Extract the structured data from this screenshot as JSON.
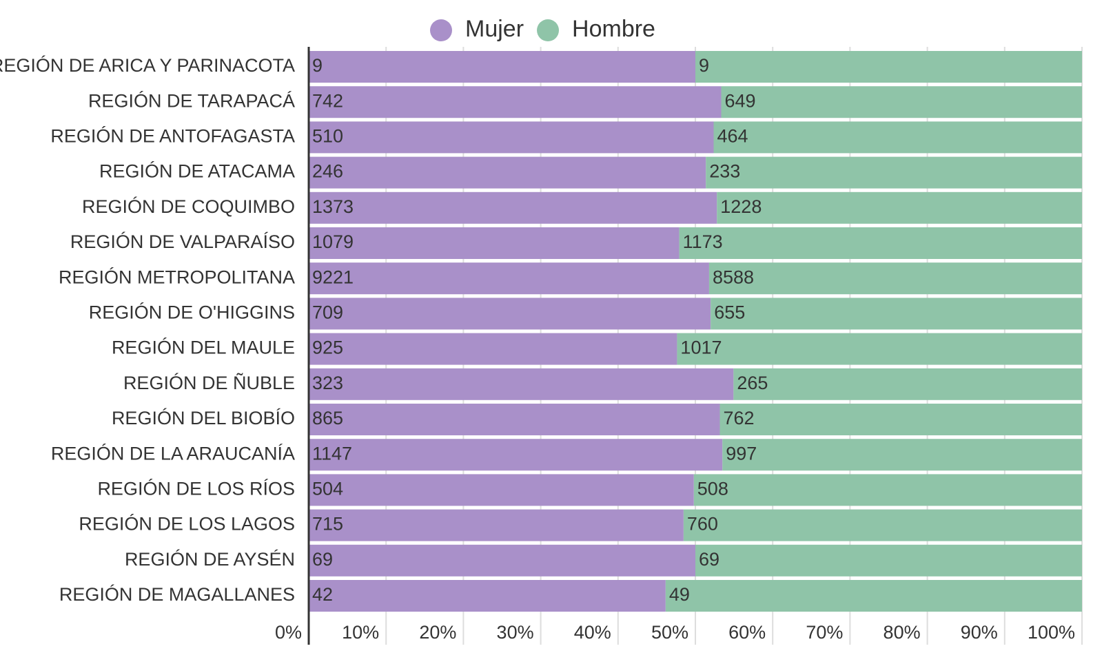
{
  "chart_data": {
    "type": "bar",
    "orientation": "horizontal",
    "stacked": "percent",
    "categories": [
      "REGIÓN DE ARICA Y PARINACOTA",
      "REGIÓN DE TARAPACÁ",
      "REGIÓN DE ANTOFAGASTA",
      "REGIÓN DE ATACAMA",
      "REGIÓN DE COQUIMBO",
      "REGIÓN DE VALPARAÍSO",
      "REGIÓN METROPOLITANA",
      "REGIÓN DE O'HIGGINS",
      "REGIÓN DEL MAULE",
      "REGIÓN DE ÑUBLE",
      "REGIÓN DEL BIOBÍO",
      "REGIÓN DE LA ARAUCANÍA",
      "REGIÓN DE LOS RÍOS",
      "REGIÓN DE LOS LAGOS",
      "REGIÓN DE AYSÉN",
      "REGIÓN DE MAGALLANES"
    ],
    "series": [
      {
        "name": "Mujer",
        "color": "#a990c9",
        "values": [
          9,
          742,
          510,
          246,
          1373,
          1079,
          9221,
          709,
          925,
          323,
          865,
          1147,
          504,
          715,
          69,
          42
        ]
      },
      {
        "name": "Hombre",
        "color": "#8fc4a8",
        "values": [
          9,
          649,
          464,
          233,
          1228,
          1173,
          8588,
          655,
          1017,
          265,
          762,
          997,
          508,
          760,
          69,
          49
        ]
      }
    ],
    "xlim": [
      0,
      100
    ],
    "xticks": [
      {
        "value": 0,
        "label": "0%"
      },
      {
        "value": 10,
        "label": "10%"
      },
      {
        "value": 20,
        "label": "20%"
      },
      {
        "value": 30,
        "label": "30%"
      },
      {
        "value": 40,
        "label": "40%"
      },
      {
        "value": 50,
        "label": "50%"
      },
      {
        "value": 60,
        "label": "60%"
      },
      {
        "value": 70,
        "label": "70%"
      },
      {
        "value": 80,
        "label": "80%"
      },
      {
        "value": 90,
        "label": "90%"
      },
      {
        "value": 100,
        "label": "100%"
      }
    ],
    "grid": true,
    "legend": "top"
  }
}
